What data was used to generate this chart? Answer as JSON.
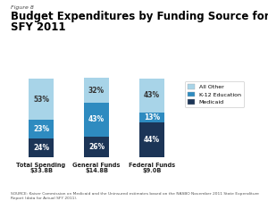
{
  "figure_label": "Figure 8",
  "title_line1": "Budget Expenditures by Funding Source for Washington,",
  "title_line2": "SFY 2011",
  "categories": [
    "Total Spending\n$33.8B",
    "General Funds\n$14.8B",
    "Federal Funds\n$9.0B"
  ],
  "medicaid": [
    24,
    26,
    44
  ],
  "k12": [
    23,
    43,
    13
  ],
  "all_other": [
    53,
    32,
    43
  ],
  "color_medicaid": "#1c3557",
  "color_k12": "#2e8bc0",
  "color_all_other": "#a8d4e8",
  "legend_labels": [
    "All Other",
    "K-12 Education",
    "Medicaid"
  ],
  "source_text": "SOURCE: Kaiser Commission on Medicaid and the Uninsured estimates based on the NASBO November 2011 State Expenditure\nReport (data for Actual SFY 2011).",
  "bar_width": 0.45
}
